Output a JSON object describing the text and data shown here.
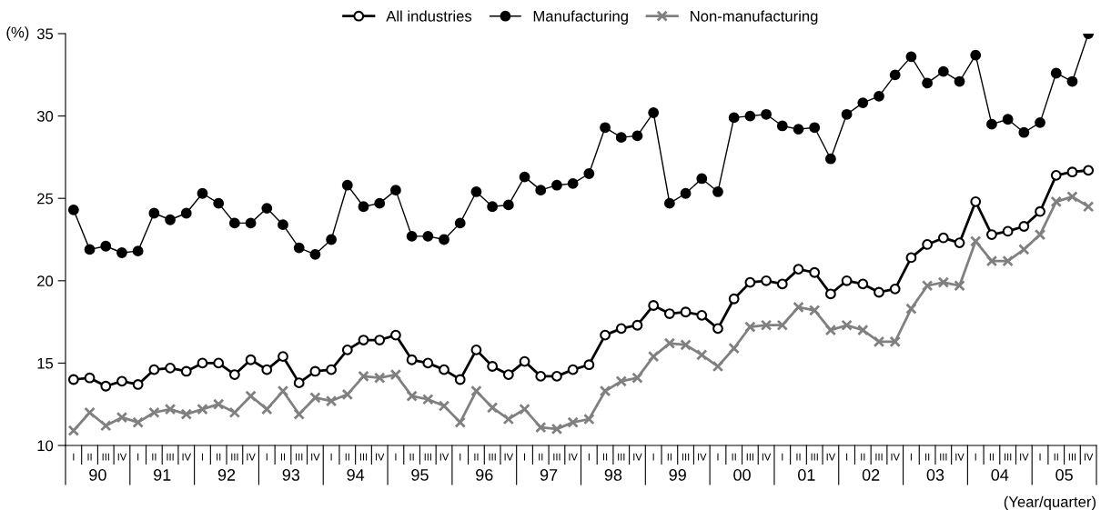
{
  "chart_data": {
    "type": "line",
    "ylabel": "(%)",
    "categories": [
      "I",
      "II",
      "III",
      "IV",
      "I",
      "II",
      "III",
      "IV",
      "I",
      "II",
      "III",
      "IV",
      "I",
      "II",
      "III",
      "IV",
      "I",
      "II",
      "III",
      "IV",
      "I",
      "II",
      "III",
      "IV",
      "I",
      "II",
      "III",
      "IV",
      "I",
      "II",
      "III",
      "IV",
      "I",
      "II",
      "III",
      "IV",
      "I",
      "II",
      "III",
      "IV",
      "I",
      "II",
      "III",
      "IV",
      "I",
      "II",
      "III",
      "IV",
      "I",
      "II",
      "III",
      "IV",
      "I",
      "II",
      "III",
      "IV",
      "I",
      "II",
      "III",
      "IV",
      "I",
      "II",
      "III",
      "IV"
    ],
    "series": [
      {
        "name": "All industries",
        "color": "#000000",
        "marker": "circle",
        "values": [
          14.0,
          14.1,
          13.6,
          13.9,
          13.7,
          14.6,
          14.7,
          14.5,
          15.0,
          15.0,
          14.3,
          15.2,
          14.6,
          15.4,
          13.8,
          14.5,
          14.6,
          15.8,
          16.4,
          16.4,
          16.7,
          15.2,
          15.0,
          14.6,
          14.0,
          15.8,
          14.8,
          14.3,
          15.1,
          14.2,
          14.2,
          14.6,
          14.9,
          16.7,
          17.1,
          17.3,
          18.5,
          18.0,
          18.1,
          17.9,
          17.1,
          18.9,
          19.9,
          20.0,
          19.8,
          20.7,
          20.5,
          19.2,
          20.0,
          19.8,
          19.3,
          19.5,
          21.4,
          22.2,
          22.6,
          22.3,
          24.8,
          22.8,
          23.0,
          23.3,
          24.2,
          26.4,
          26.6,
          26.7
        ]
      },
      {
        "name": "Manufacturing",
        "color": "#000000",
        "marker": "circle",
        "values": [
          24.3,
          21.9,
          22.1,
          21.7,
          21.8,
          24.1,
          23.7,
          24.1,
          25.3,
          24.7,
          23.5,
          23.5,
          24.4,
          23.4,
          22.0,
          21.6,
          22.5,
          25.8,
          24.5,
          24.7,
          25.5,
          22.7,
          22.7,
          22.5,
          23.5,
          25.4,
          24.5,
          24.6,
          26.3,
          25.5,
          25.8,
          25.9,
          26.5,
          29.3,
          28.7,
          28.8,
          30.2,
          24.7,
          25.3,
          26.2,
          25.4,
          29.9,
          30.0,
          30.1,
          29.4,
          29.2,
          29.3,
          27.4,
          30.1,
          30.8,
          31.2,
          32.5,
          33.6,
          32.0,
          32.7,
          32.1,
          33.7,
          29.5,
          29.8,
          29.0,
          29.6,
          32.6,
          32.1,
          35.0
        ]
      },
      {
        "name": "Non-manufacturing",
        "color": "#808080",
        "marker": "cross",
        "values": [
          10.9,
          12.0,
          11.2,
          11.7,
          11.4,
          12.0,
          12.2,
          11.9,
          12.2,
          12.5,
          12.0,
          13.0,
          12.2,
          13.3,
          11.9,
          12.9,
          12.7,
          13.1,
          14.2,
          14.1,
          14.3,
          13.0,
          12.8,
          12.4,
          11.4,
          13.3,
          12.3,
          11.6,
          12.2,
          11.1,
          11.0,
          11.4,
          11.6,
          13.3,
          13.9,
          14.1,
          15.4,
          16.2,
          16.1,
          15.5,
          14.8,
          15.9,
          17.2,
          17.3,
          17.3,
          18.4,
          18.2,
          17.0,
          17.3,
          17.0,
          16.3,
          16.3,
          18.3,
          19.7,
          19.9,
          19.7,
          22.4,
          21.2,
          21.2,
          21.9,
          22.8,
          24.8,
          25.1,
          24.5
        ]
      }
    ],
    "ylim": [
      10,
      35
    ],
    "yticks": [
      10,
      15,
      20,
      25,
      30,
      35
    ],
    "annotations": [
      "90",
      "91",
      "92",
      "93",
      "94",
      "95",
      "96",
      "97",
      "98",
      "99",
      "00",
      "01",
      "02",
      "03",
      "04",
      "05",
      "(Year/quarter)"
    ],
    "grid": false,
    "legend": "top"
  }
}
